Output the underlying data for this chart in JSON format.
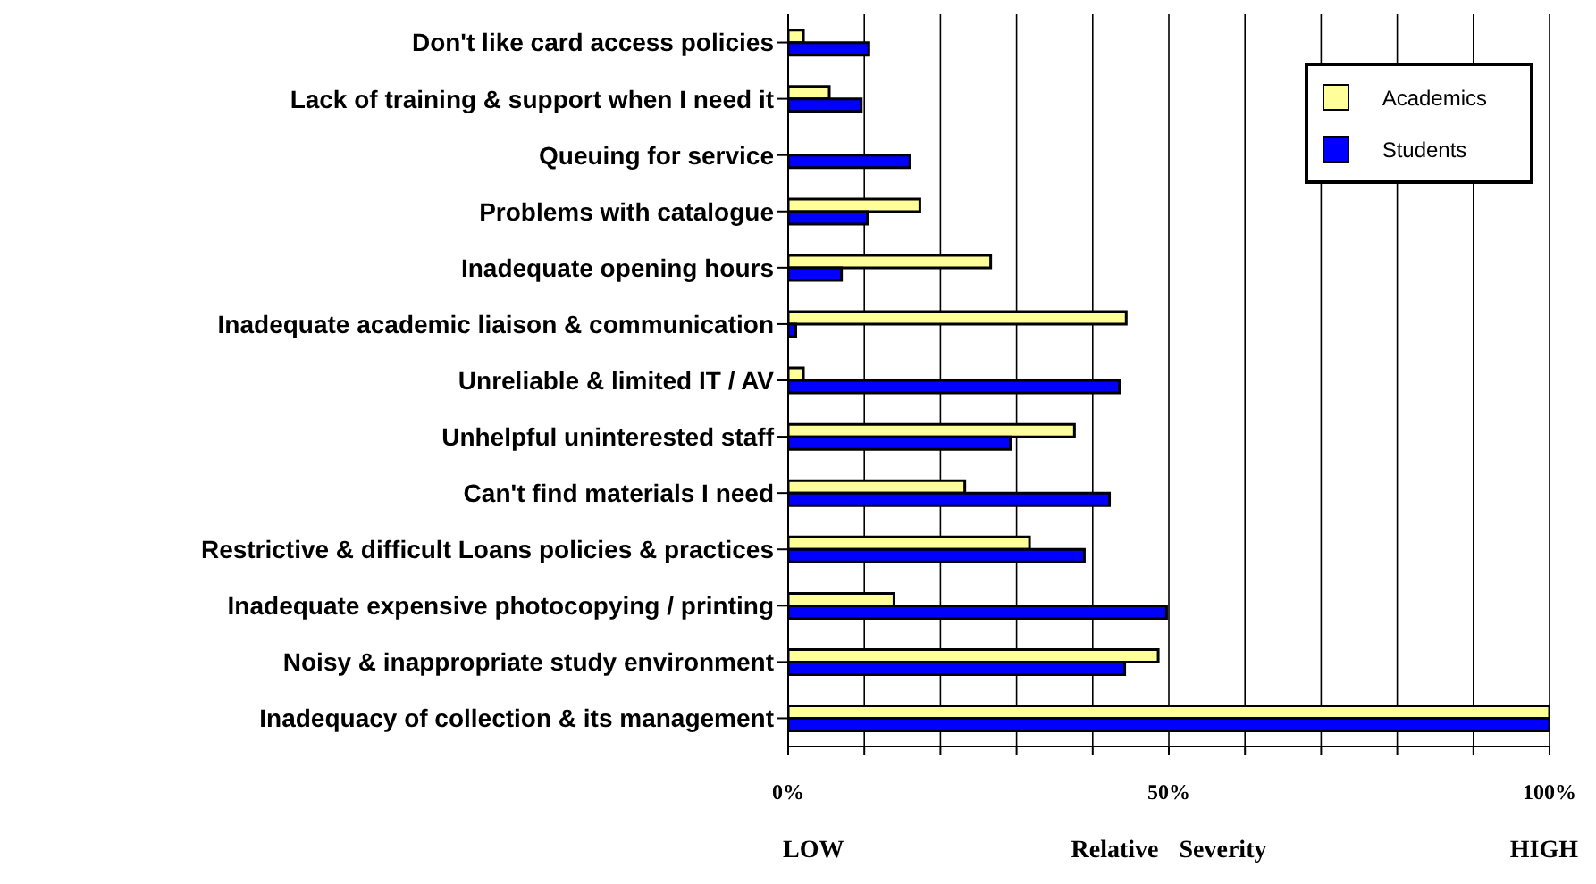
{
  "chart_data": {
    "type": "bar",
    "orientation": "horizontal",
    "xlabel": "Relative Severity",
    "annotations": [
      "LOW",
      "HIGH"
    ],
    "categories": [
      "Don't like card access policies",
      "Lack of training & support when I need it",
      "Queuing for service",
      "Problems with catalogue",
      "Inadequate opening hours",
      "Inadequate academic liaison & communication",
      "Unreliable & limited IT / AV",
      "Unhelpful uninterested staff",
      "Can't find materials I need",
      "Restrictive & difficult Loans policies & practices",
      "Inadequate expensive photocopying / printing",
      "Noisy & inappropriate study environment",
      "Inadequacy of collection & its management"
    ],
    "series": [
      {
        "name": "Academics",
        "color": "#ffff99",
        "values": [
          2,
          5.4,
          0,
          17.3,
          26.6,
          44.4,
          2,
          37.6,
          23.2,
          31.7,
          13.9,
          48.6,
          100
        ]
      },
      {
        "name": "Students",
        "color": "#0000ff",
        "values": [
          10.6,
          9.6,
          16,
          10.4,
          7,
          1,
          43.5,
          29.2,
          42.2,
          38.9,
          49.7,
          44.2,
          100
        ]
      }
    ],
    "xlim": [
      0,
      100
    ],
    "xticks": [
      {
        "value": 0,
        "label": "0%"
      },
      {
        "value": 10,
        "label": null
      },
      {
        "value": 20,
        "label": null
      },
      {
        "value": 30,
        "label": null
      },
      {
        "value": 40,
        "label": null
      },
      {
        "value": 50,
        "label": "50%"
      },
      {
        "value": 60,
        "label": null
      },
      {
        "value": 70,
        "label": null
      },
      {
        "value": 80,
        "label": null
      },
      {
        "value": 90,
        "label": null
      },
      {
        "value": 100,
        "label": "100%"
      }
    ],
    "grid": "x",
    "legend": "top right"
  }
}
